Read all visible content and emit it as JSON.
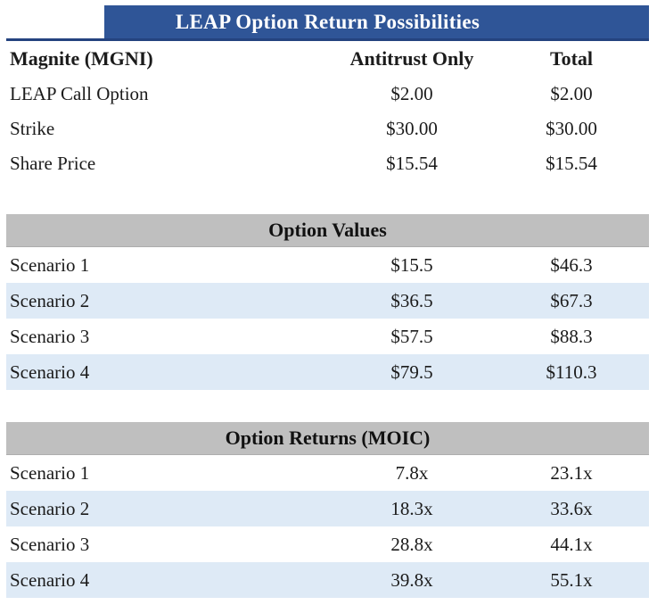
{
  "title": "LEAP Option Return Possibilities",
  "colors": {
    "title_bg": "#2F5597",
    "title_border": "#24437F",
    "section_band_bg": "#BFBFBF",
    "banded_row_bg": "#DEEAF6",
    "title_text": "#FFFFFF",
    "body_text": "#1B1B1B"
  },
  "header": {
    "label": "Magnite (MGNI)",
    "antitrust": "Antitrust Only",
    "total": "Total"
  },
  "inputs": {
    "rows": [
      {
        "label": "LEAP Call Option",
        "antitrust": "$2.00",
        "total": "$2.00"
      },
      {
        "label": "Strike",
        "antitrust": "$30.00",
        "total": "$30.00"
      },
      {
        "label": "Share Price",
        "antitrust": "$15.54",
        "total": "$15.54"
      }
    ]
  },
  "option_values": {
    "title": "Option Values",
    "rows": [
      {
        "label": "Scenario 1",
        "antitrust": "$15.5",
        "total": "$46.3"
      },
      {
        "label": "Scenario 2",
        "antitrust": "$36.5",
        "total": "$67.3"
      },
      {
        "label": "Scenario 3",
        "antitrust": "$57.5",
        "total": "$88.3"
      },
      {
        "label": "Scenario 4",
        "antitrust": "$79.5",
        "total": "$110.3"
      }
    ]
  },
  "option_returns": {
    "title": "Option Returns (MOIC)",
    "rows": [
      {
        "label": "Scenario 1",
        "antitrust": "7.8x",
        "total": "23.1x"
      },
      {
        "label": "Scenario 2",
        "antitrust": "18.3x",
        "total": "33.6x"
      },
      {
        "label": "Scenario 3",
        "antitrust": "28.8x",
        "total": "44.1x"
      },
      {
        "label": "Scenario 4",
        "antitrust": "39.8x",
        "total": "55.1x"
      }
    ]
  }
}
